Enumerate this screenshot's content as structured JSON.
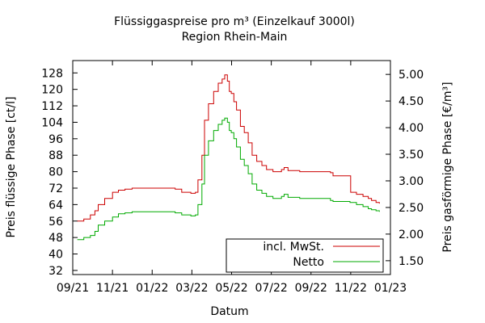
{
  "chart_data": {
    "type": "line",
    "title": "Flüssiggaspreise pro m³ (Einzelkauf 3000l)",
    "subtitle": "Region Rhein-Main",
    "xlabel": "Datum",
    "ylabel": "Preis flüssige Phase [ct/l]",
    "y2label": "Preis gasförmige Phase [€/m³]",
    "x_tick_labels": [
      "09/21",
      "11/21",
      "01/22",
      "03/22",
      "05/22",
      "07/22",
      "09/22",
      "11/22",
      "01/23"
    ],
    "xlim": [
      "2021-09-01",
      "2023-01-01"
    ],
    "y_ticks": [
      32,
      40,
      48,
      56,
      64,
      72,
      80,
      88,
      96,
      104,
      112,
      120,
      128
    ],
    "ylim": [
      30,
      134
    ],
    "y2_tick_labels": [
      "1.50",
      "2.00",
      "2.50",
      "3.00",
      "3.50",
      "4.00",
      "4.50",
      "5.00"
    ],
    "y2_tick_values": [
      1.5,
      2.0,
      2.5,
      3.0,
      3.5,
      4.0,
      4.5,
      5.0
    ],
    "y2lim": [
      1.24,
      5.26
    ],
    "grid": false,
    "legend_position": "bottom-right",
    "series": [
      {
        "name": "incl. MwSt.",
        "color": "#cc0000",
        "points": [
          [
            "2021-09-08",
            56
          ],
          [
            "2021-09-18",
            57
          ],
          [
            "2021-09-28",
            59
          ],
          [
            "2021-10-05",
            61
          ],
          [
            "2021-10-10",
            64
          ],
          [
            "2021-10-20",
            67
          ],
          [
            "2021-11-01",
            70
          ],
          [
            "2021-11-10",
            71
          ],
          [
            "2021-11-20",
            71.5
          ],
          [
            "2021-12-01",
            72
          ],
          [
            "2021-12-20",
            72
          ],
          [
            "2022-01-15",
            72
          ],
          [
            "2022-02-05",
            71.5
          ],
          [
            "2022-02-15",
            70
          ],
          [
            "2022-03-01",
            69.5
          ],
          [
            "2022-03-08",
            70
          ],
          [
            "2022-03-12",
            76
          ],
          [
            "2022-03-18",
            88
          ],
          [
            "2022-03-22",
            105
          ],
          [
            "2022-03-28",
            113
          ],
          [
            "2022-04-05",
            119
          ],
          [
            "2022-04-12",
            123
          ],
          [
            "2022-04-18",
            125
          ],
          [
            "2022-04-22",
            127
          ],
          [
            "2022-04-26",
            124
          ],
          [
            "2022-04-29",
            119
          ],
          [
            "2022-05-02",
            118
          ],
          [
            "2022-05-06",
            114
          ],
          [
            "2022-05-10",
            110
          ],
          [
            "2022-05-16",
            102
          ],
          [
            "2022-05-22",
            99
          ],
          [
            "2022-05-28",
            94
          ],
          [
            "2022-06-03",
            88
          ],
          [
            "2022-06-10",
            85
          ],
          [
            "2022-06-18",
            83
          ],
          [
            "2022-06-25",
            81
          ],
          [
            "2022-07-05",
            80
          ],
          [
            "2022-07-15",
            80
          ],
          [
            "2022-07-18",
            81
          ],
          [
            "2022-07-22",
            82
          ],
          [
            "2022-07-28",
            80.5
          ],
          [
            "2022-08-15",
            80
          ],
          [
            "2022-09-15",
            80
          ],
          [
            "2022-10-01",
            79.5
          ],
          [
            "2022-10-05",
            78
          ],
          [
            "2022-10-20",
            78
          ],
          [
            "2022-10-31",
            78
          ],
          [
            "2022-11-01",
            70
          ],
          [
            "2022-11-10",
            69
          ],
          [
            "2022-11-20",
            68
          ],
          [
            "2022-11-28",
            67
          ],
          [
            "2022-12-03",
            66
          ],
          [
            "2022-12-10",
            65
          ],
          [
            "2022-12-15",
            64.5
          ]
        ]
      },
      {
        "name": "Netto",
        "color": "#00aa00",
        "points": [
          [
            "2021-09-08",
            47
          ],
          [
            "2021-09-18",
            48
          ],
          [
            "2021-09-28",
            49
          ],
          [
            "2021-10-05",
            51
          ],
          [
            "2021-10-10",
            54
          ],
          [
            "2021-10-20",
            56
          ],
          [
            "2021-11-01",
            58
          ],
          [
            "2021-11-10",
            59.5
          ],
          [
            "2021-11-20",
            60
          ],
          [
            "2021-12-01",
            60.5
          ],
          [
            "2021-12-20",
            60.5
          ],
          [
            "2022-01-15",
            60.5
          ],
          [
            "2022-02-05",
            60
          ],
          [
            "2022-02-15",
            59
          ],
          [
            "2022-03-01",
            58.5
          ],
          [
            "2022-03-08",
            59
          ],
          [
            "2022-03-12",
            64
          ],
          [
            "2022-03-18",
            74
          ],
          [
            "2022-03-22",
            88
          ],
          [
            "2022-03-28",
            95
          ],
          [
            "2022-04-05",
            100
          ],
          [
            "2022-04-12",
            103
          ],
          [
            "2022-04-18",
            105
          ],
          [
            "2022-04-22",
            106
          ],
          [
            "2022-04-26",
            104
          ],
          [
            "2022-04-29",
            100
          ],
          [
            "2022-05-02",
            99
          ],
          [
            "2022-05-06",
            96
          ],
          [
            "2022-05-10",
            92
          ],
          [
            "2022-05-16",
            86
          ],
          [
            "2022-05-22",
            83
          ],
          [
            "2022-05-28",
            79
          ],
          [
            "2022-06-03",
            74
          ],
          [
            "2022-06-10",
            71
          ],
          [
            "2022-06-18",
            69.5
          ],
          [
            "2022-06-25",
            68
          ],
          [
            "2022-07-05",
            67
          ],
          [
            "2022-07-15",
            67
          ],
          [
            "2022-07-18",
            68
          ],
          [
            "2022-07-22",
            69
          ],
          [
            "2022-07-28",
            67.5
          ],
          [
            "2022-08-15",
            67
          ],
          [
            "2022-09-15",
            67
          ],
          [
            "2022-10-01",
            66
          ],
          [
            "2022-10-05",
            65.5
          ],
          [
            "2022-10-31",
            65
          ],
          [
            "2022-11-10",
            64
          ],
          [
            "2022-11-20",
            63
          ],
          [
            "2022-11-28",
            62
          ],
          [
            "2022-12-03",
            61.5
          ],
          [
            "2022-12-10",
            61
          ],
          [
            "2022-12-15",
            60.5
          ]
        ]
      }
    ]
  }
}
